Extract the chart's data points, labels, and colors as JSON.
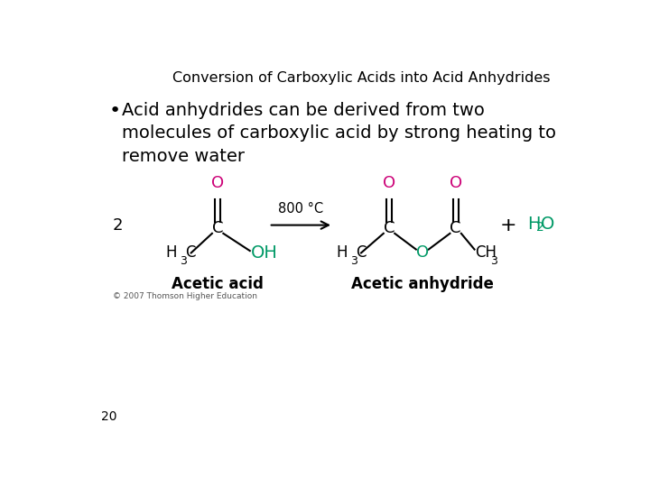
{
  "title": "Conversion of Carboxylic Acids into Acid Anhydrides",
  "title_fontsize": 11.5,
  "bullet_text": "Acid anhydrides can be derived from two\nmolecules of carboxylic acid by strong heating to\nremove water",
  "bullet_fontsize": 14,
  "page_number": "20",
  "copyright": "© 2007 Thomson Higher Education",
  "arrow_label": "800 °C",
  "plus_sign": "+",
  "coeff": "2",
  "acetic_acid_label": "Acetic acid",
  "anhydride_label": "Acetic anhydride",
  "color_black": "#000000",
  "color_pink": "#cc0077",
  "color_green": "#009966",
  "background": "#ffffff"
}
